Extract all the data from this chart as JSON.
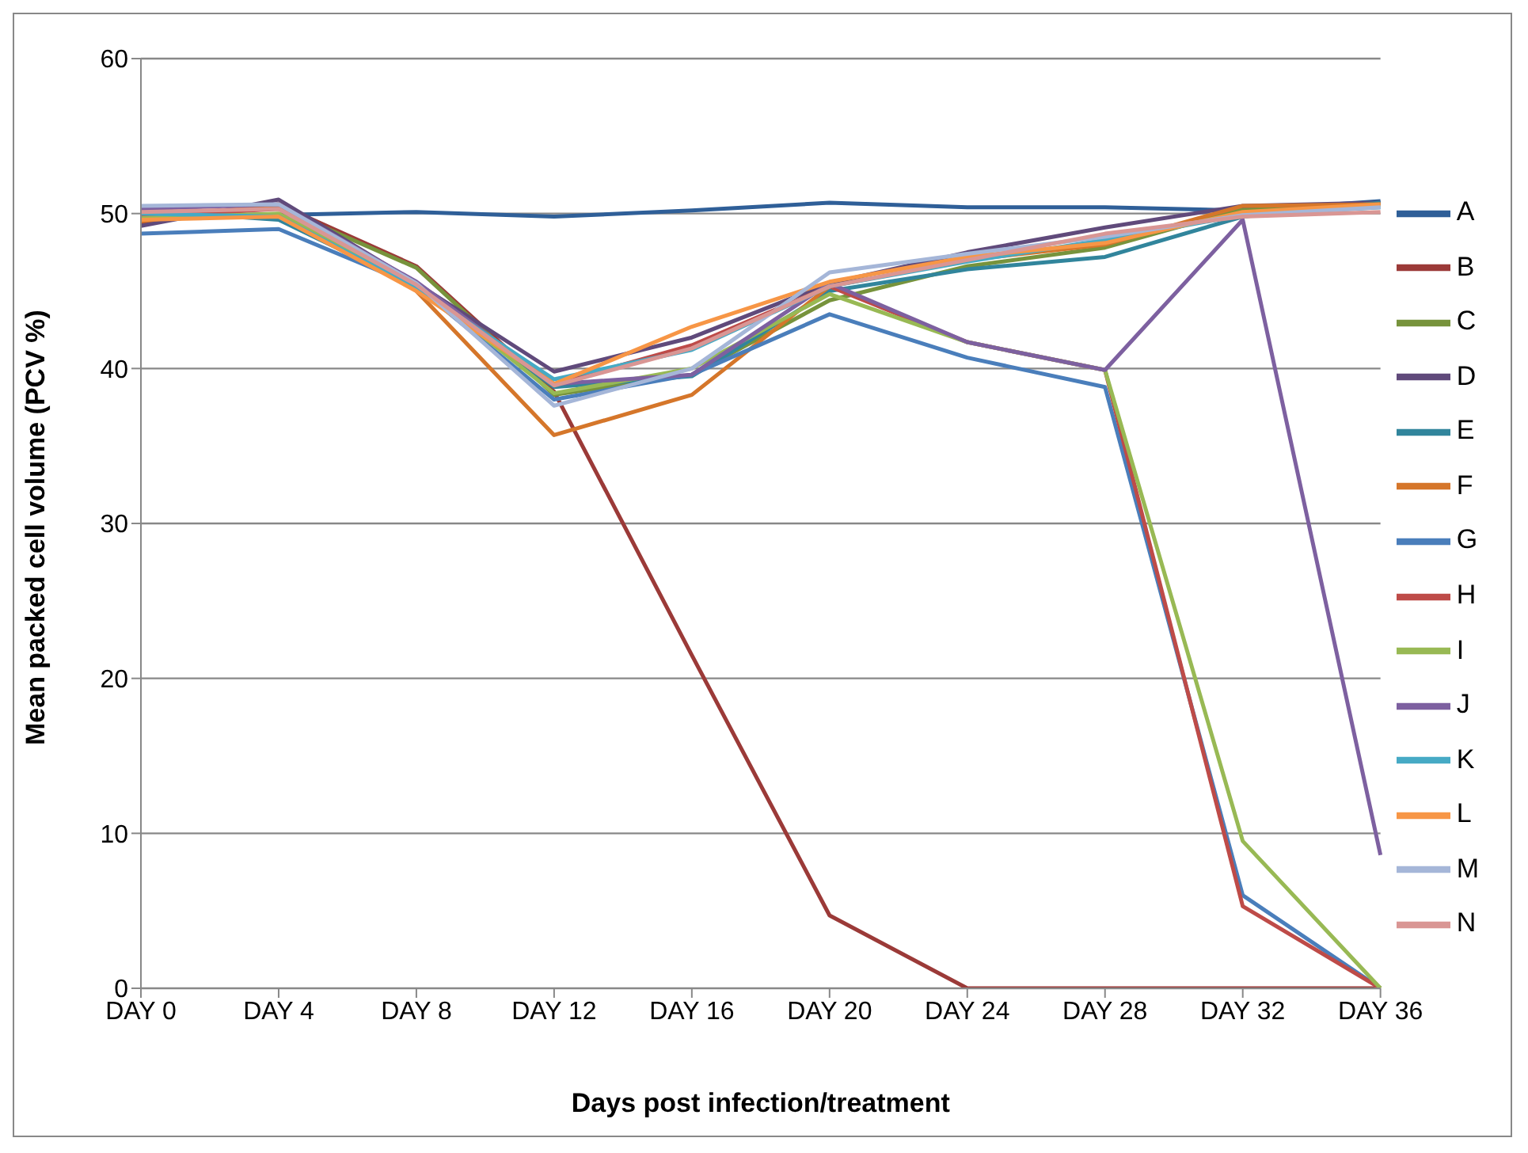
{
  "chart_data": {
    "type": "line",
    "xlabel": "Days post infection/treatment",
    "ylabel": "Mean packed cell volume (PCV %)",
    "categories": [
      "DAY 0",
      "DAY 4",
      "DAY 8",
      "DAY 12",
      "DAY 16",
      "DAY 20",
      "DAY 24",
      "DAY 28",
      "DAY 32",
      "DAY 36"
    ],
    "ylim": [
      0,
      60
    ],
    "yticks": [
      0,
      10,
      20,
      30,
      40,
      50,
      60
    ],
    "grid": "y",
    "legend": "right",
    "marker": "none",
    "line_style": "solid",
    "series": [
      {
        "name": "A",
        "color": "#2f5f98",
        "values": [
          49.9,
          49.9,
          50.1,
          49.8,
          50.2,
          50.7,
          50.4,
          50.4,
          50.2,
          50.8
        ]
      },
      {
        "name": "B",
        "color": "#9b3a38",
        "values": [
          49.4,
          50.6,
          46.6,
          38.5,
          21.5,
          4.7,
          0,
          0,
          0,
          0
        ]
      },
      {
        "name": "C",
        "color": "#77933c",
        "values": [
          49.6,
          50.4,
          46.5,
          38.3,
          39.6,
          44.4,
          46.6,
          47.8,
          50.3,
          50.6
        ]
      },
      {
        "name": "D",
        "color": "#604a7b",
        "values": [
          49.2,
          50.9,
          45.5,
          39.8,
          42,
          45.5,
          47.5,
          49.1,
          50.5,
          50.7
        ]
      },
      {
        "name": "E",
        "color": "#31859c",
        "values": [
          50.2,
          49.6,
          45.3,
          38.8,
          39.5,
          45,
          46.4,
          47.2,
          49.8,
          50.7
        ]
      },
      {
        "name": "F",
        "color": "#d5762a",
        "values": [
          49.5,
          50.6,
          45,
          35.7,
          38.3,
          45.3,
          47,
          48,
          50.5,
          50.6
        ]
      },
      {
        "name": "G",
        "color": "#4a7ebb",
        "values": [
          48.7,
          49,
          45.3,
          38,
          39.6,
          43.5,
          40.7,
          38.8,
          6,
          0
        ]
      },
      {
        "name": "H",
        "color": "#be4b48",
        "values": [
          49.8,
          50.3,
          45.5,
          39,
          41.5,
          45.3,
          41.7,
          39.9,
          5.3,
          0
        ]
      },
      {
        "name": "I",
        "color": "#98b954",
        "values": [
          49.7,
          50,
          45.5,
          38.4,
          40,
          44.8,
          41.7,
          39.9,
          9.5,
          0
        ]
      },
      {
        "name": "J",
        "color": "#7d60a0",
        "values": [
          50.3,
          50.6,
          45.6,
          39,
          39.6,
          45.5,
          41.7,
          39.9,
          49.6,
          8.6
        ]
      },
      {
        "name": "K",
        "color": "#46aac5",
        "values": [
          50,
          49.8,
          45.2,
          39.3,
          41.2,
          45.3,
          46.9,
          48.3,
          49.9,
          50.4
        ]
      },
      {
        "name": "L",
        "color": "#f79646",
        "values": [
          49.6,
          49.8,
          45,
          39,
          42.7,
          45.6,
          47.2,
          48.1,
          50.1,
          50.6
        ]
      },
      {
        "name": "M",
        "color": "#a5b6d8",
        "values": [
          50.5,
          50.6,
          45.5,
          37.6,
          40,
          46.2,
          47.4,
          48.5,
          49.9,
          50.4
        ]
      },
      {
        "name": "N",
        "color": "#d99694",
        "values": [
          50.1,
          50.3,
          45.4,
          38.9,
          41.3,
          45.3,
          47,
          48.7,
          49.8,
          50.1
        ]
      }
    ]
  }
}
